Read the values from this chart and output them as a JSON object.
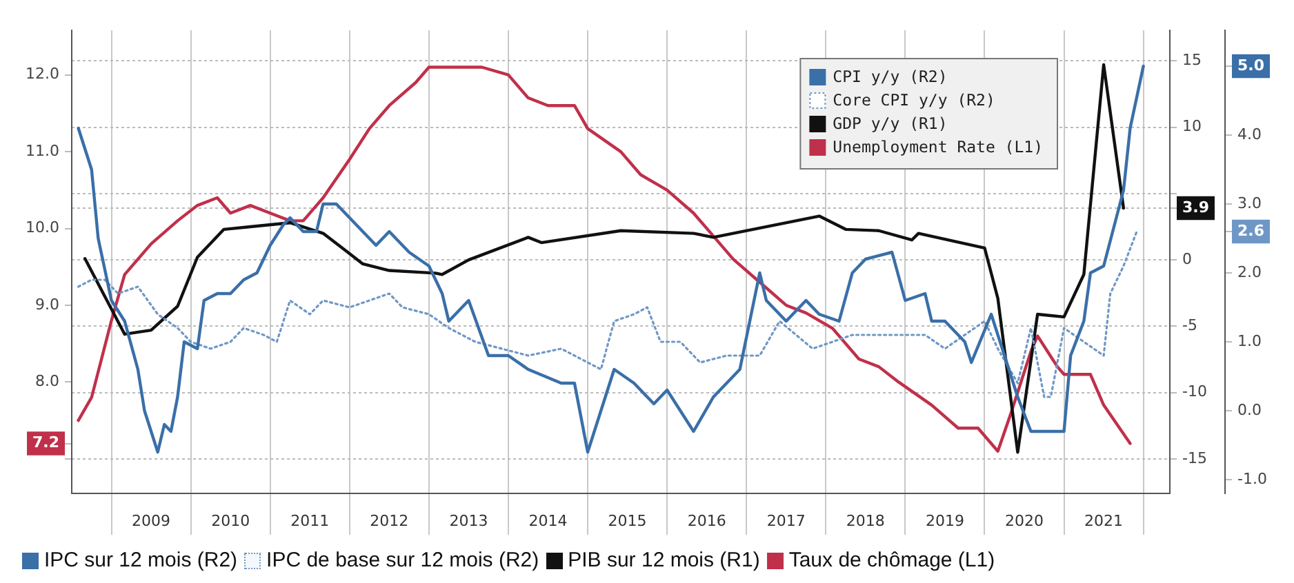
{
  "chart_data": {
    "type": "line",
    "legend": "top right",
    "grid": true,
    "xlim": [
      "2008-07",
      "2022-05"
    ],
    "xticks": [
      {
        "value": "2009-01",
        "label": null
      },
      {
        "value": "2009-07",
        "label": "2009"
      },
      {
        "value": "2010-01",
        "label": null
      },
      {
        "value": "2010-07",
        "label": "2010"
      },
      {
        "value": "2011-01",
        "label": null
      },
      {
        "value": "2011-07",
        "label": "2011"
      },
      {
        "value": "2012-01",
        "label": null
      },
      {
        "value": "2012-07",
        "label": "2012"
      },
      {
        "value": "2013-01",
        "label": null
      },
      {
        "value": "2013-07",
        "label": "2013"
      },
      {
        "value": "2014-01",
        "label": null
      },
      {
        "value": "2014-07",
        "label": "2014"
      },
      {
        "value": "2015-01",
        "label": null
      },
      {
        "value": "2015-07",
        "label": "2015"
      },
      {
        "value": "2016-01",
        "label": null
      },
      {
        "value": "2016-07",
        "label": "2016"
      },
      {
        "value": "2017-01",
        "label": null
      },
      {
        "value": "2017-07",
        "label": "2017"
      },
      {
        "value": "2018-01",
        "label": null
      },
      {
        "value": "2018-07",
        "label": "2018"
      },
      {
        "value": "2019-01",
        "label": null
      },
      {
        "value": "2019-07",
        "label": "2019"
      },
      {
        "value": "2020-01",
        "label": null
      },
      {
        "value": "2020-07",
        "label": "2020"
      },
      {
        "value": "2021-01",
        "label": null
      },
      {
        "value": "2021-07",
        "label": "2021"
      },
      {
        "value": "2022-01",
        "label": null
      }
    ],
    "ylim": [
      6.55,
      12.58
    ],
    "yticks": [
      {
        "value": 7,
        "label": null
      },
      {
        "value": 7.2,
        "label": "7.2"
      },
      {
        "value": 8,
        "label": "8.0"
      },
      {
        "value": 9,
        "label": "9.0"
      },
      {
        "value": 10,
        "label": "10.0"
      },
      {
        "value": 11,
        "label": "11.0"
      },
      {
        "value": 12,
        "label": "12.0"
      }
    ],
    "y2lim": [
      -17.6,
      17.3
    ],
    "y2ticks": [
      -15,
      -10,
      -5,
      0,
      {
        "value": 3.9,
        "label": "3.9"
      },
      {
        "value": 5,
        "label": null
      },
      10,
      15
    ],
    "y3lim": [
      -1.2,
      5.52
    ],
    "y3ticks": [
      {
        "value": -1,
        "label": "-1.0"
      },
      {
        "value": 0,
        "label": "0.0"
      },
      {
        "value": 1,
        "label": "1.0"
      },
      {
        "value": 2,
        "label": "2.0"
      },
      {
        "value": 2.6,
        "label": "2.6"
      },
      {
        "value": 3,
        "label": "3.0"
      },
      {
        "value": 4,
        "label": "4.0"
      },
      {
        "value": 5,
        "label": "5.0"
      }
    ],
    "annotations": [
      "IPC sur 12 mois (R2)",
      "IPC de base sur 12 mois (R2)",
      "PIB sur 12 mois (R1)",
      "Taux de chômage (L1)"
    ],
    "series": [
      {
        "name": "CPI y/y (R2)",
        "color": "#3a6fa8",
        "axis": "y3",
        "x": [
          "2008-08",
          "2008-10",
          "2008-11",
          "2009-01",
          "2009-03",
          "2009-05",
          "2009-06",
          "2009-08",
          "2009-09",
          "2009-10",
          "2009-11",
          "2009-12",
          "2010-02",
          "2010-03",
          "2010-05",
          "2010-07",
          "2010-09",
          "2010-11",
          "2011-01",
          "2011-03",
          "2011-04",
          "2011-06",
          "2011-08",
          "2011-09",
          "2011-11",
          "2012-01",
          "2012-05",
          "2012-07",
          "2012-10",
          "2013-01",
          "2013-03",
          "2013-04",
          "2013-07",
          "2013-10",
          "2014-01",
          "2014-04",
          "2014-09",
          "2014-11",
          "2015-01",
          "2015-05",
          "2015-08",
          "2015-11",
          "2016-01",
          "2016-05",
          "2016-08",
          "2016-12",
          "2017-03",
          "2017-04",
          "2017-07",
          "2017-10",
          "2017-12",
          "2018-03",
          "2018-05",
          "2018-07",
          "2018-11",
          "2019-01",
          "2019-04",
          "2019-05",
          "2019-07",
          "2019-10",
          "2019-11",
          "2020-02",
          "2020-04",
          "2020-06",
          "2020-08",
          "2021-01",
          "2021-02",
          "2021-04",
          "2021-05",
          "2021-07",
          "2021-10",
          "2021-11",
          "2022-01"
        ],
        "values": [
          4.1,
          3.5,
          2.5,
          1.6,
          1.3,
          0.6,
          0.0,
          -0.6,
          -0.2,
          -0.3,
          0.2,
          1.0,
          0.9,
          1.6,
          1.7,
          1.7,
          1.9,
          2.0,
          2.4,
          2.7,
          2.8,
          2.6,
          2.6,
          3.0,
          3.0,
          2.8,
          2.4,
          2.6,
          2.3,
          2.1,
          1.7,
          1.3,
          1.6,
          0.8,
          0.8,
          0.6,
          0.4,
          0.4,
          -0.6,
          0.6,
          0.4,
          0.1,
          0.3,
          -0.3,
          0.2,
          0.6,
          2.0,
          1.6,
          1.3,
          1.6,
          1.4,
          1.3,
          2.0,
          2.2,
          2.3,
          1.6,
          1.7,
          1.3,
          1.3,
          1.0,
          0.7,
          1.4,
          0.8,
          0.2,
          -0.3,
          -0.3,
          0.8,
          1.3,
          2.0,
          2.1,
          3.2,
          4.1,
          5.0
        ]
      },
      {
        "name": "Core CPI y/y (R2)",
        "color": "#6f97c6",
        "axis": "y3",
        "line_style": "dotted",
        "x": [
          "2008-08",
          "2008-10",
          "2008-12",
          "2009-02",
          "2009-05",
          "2009-08",
          "2009-11",
          "2010-01",
          "2010-04",
          "2010-07",
          "2010-09",
          "2010-12",
          "2011-02",
          "2011-04",
          "2011-07",
          "2011-09",
          "2012-01",
          "2012-07",
          "2012-09",
          "2013-01",
          "2013-04",
          "2013-08",
          "2014-04",
          "2014-09",
          "2015-03",
          "2015-05",
          "2015-08",
          "2015-10",
          "2015-12",
          "2016-03",
          "2016-06",
          "2016-10",
          "2017-03",
          "2017-06",
          "2017-11",
          "2018-05",
          "2018-09",
          "2019-04",
          "2019-07",
          "2020-01",
          "2020-03",
          "2020-06",
          "2020-08",
          "2020-10",
          "2020-11",
          "2021-01",
          "2021-04",
          "2021-07",
          "2021-08",
          "2021-10",
          "2021-12"
        ],
        "values": [
          1.8,
          1.9,
          1.9,
          1.7,
          1.8,
          1.4,
          1.2,
          1.0,
          0.9,
          1.0,
          1.2,
          1.1,
          1.0,
          1.6,
          1.4,
          1.6,
          1.5,
          1.7,
          1.5,
          1.4,
          1.2,
          1.0,
          0.8,
          0.9,
          0.6,
          1.3,
          1.4,
          1.5,
          1.0,
          1.0,
          0.7,
          0.8,
          0.8,
          1.3,
          0.9,
          1.1,
          1.1,
          1.1,
          0.9,
          1.3,
          0.9,
          0.4,
          1.2,
          0.2,
          0.2,
          1.2,
          1.0,
          0.8,
          1.7,
          2.1,
          2.6
        ]
      },
      {
        "name": "GDP y/y (R1)",
        "color": "#111111",
        "axis": "y2",
        "x": [
          "2008-09",
          "2009-03",
          "2009-07",
          "2009-11",
          "2010-02",
          "2010-06",
          "2010-10",
          "2011-04",
          "2011-09",
          "2012-03",
          "2012-07",
          "2013-02",
          "2013-03",
          "2013-07",
          "2014-04",
          "2014-06",
          "2015-06",
          "2016-05",
          "2016-08",
          "2017-12",
          "2018-04",
          "2018-09",
          "2019-02",
          "2019-03",
          "2020-01",
          "2020-03",
          "2020-06",
          "2020-09",
          "2021-01",
          "2021-04",
          "2021-07",
          "2021-10"
        ],
        "values": [
          0.1,
          -5.6,
          -5.3,
          -3.5,
          0.2,
          2.3,
          2.5,
          2.8,
          2.0,
          -0.3,
          -0.8,
          -1.0,
          -1.1,
          0.0,
          1.7,
          1.3,
          2.2,
          2.0,
          1.7,
          3.3,
          2.3,
          2.2,
          1.5,
          2.0,
          0.9,
          -2.9,
          -14.5,
          -4.1,
          -4.3,
          -1.1,
          14.7,
          3.9
        ]
      },
      {
        "name": "Unemployment Rate (L1)",
        "color": "#c0304a",
        "x": [
          "2008-08",
          "2008-10",
          "2009-01",
          "2009-03",
          "2009-07",
          "2009-11",
          "2010-02",
          "2010-05",
          "2010-07",
          "2010-10",
          "2011-01",
          "2011-04",
          "2011-06",
          "2011-09",
          "2012-01",
          "2012-04",
          "2012-07",
          "2012-11",
          "2013-01",
          "2013-09",
          "2014-01",
          "2014-04",
          "2014-07",
          "2014-11",
          "2015-01",
          "2015-06",
          "2015-09",
          "2016-01",
          "2016-05",
          "2016-08",
          "2016-11",
          "2017-03",
          "2017-07",
          "2017-10",
          "2018-02",
          "2018-06",
          "2018-09",
          "2018-12",
          "2019-05",
          "2019-09",
          "2019-12",
          "2020-03",
          "2020-05",
          "2020-08",
          "2020-09",
          "2020-12",
          "2021-01",
          "2021-05",
          "2021-07",
          "2021-11"
        ],
        "values": [
          7.5,
          7.8,
          8.8,
          9.4,
          9.8,
          10.1,
          10.3,
          10.4,
          10.2,
          10.3,
          10.2,
          10.1,
          10.1,
          10.4,
          10.9,
          11.3,
          11.6,
          11.9,
          12.1,
          12.1,
          12.0,
          11.7,
          11.6,
          11.6,
          11.3,
          11.0,
          10.7,
          10.5,
          10.2,
          9.9,
          9.6,
          9.3,
          9.0,
          8.9,
          8.7,
          8.3,
          8.2,
          8.0,
          7.7,
          7.4,
          7.4,
          7.1,
          7.6,
          8.4,
          8.6,
          8.2,
          8.1,
          8.1,
          7.7,
          7.2
        ]
      }
    ]
  }
}
